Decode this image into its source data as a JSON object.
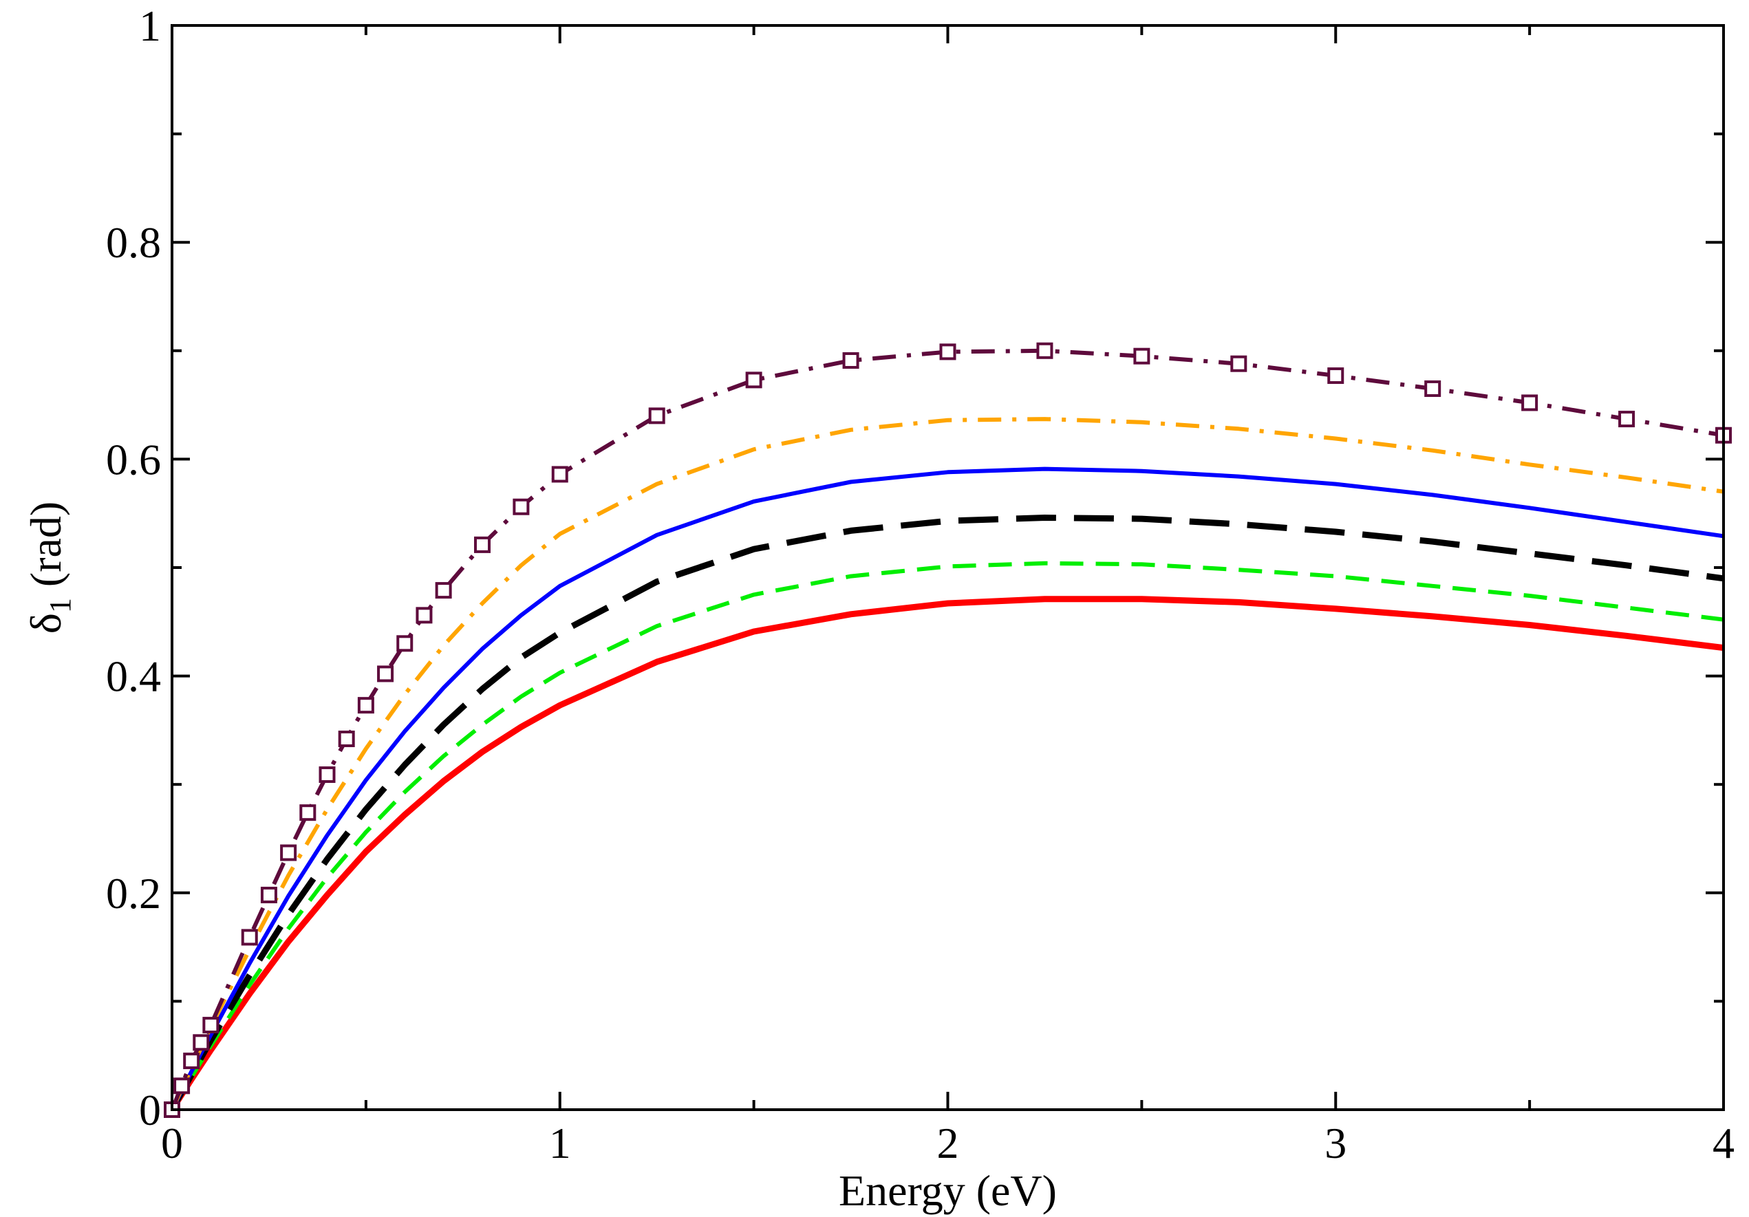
{
  "chart_data": {
    "type": "line",
    "title": "",
    "xlabel": "Energy (eV)",
    "ylabel": {
      "symbol": "δ",
      "subscript": "1",
      "unit": " (rad)"
    },
    "xlim": [
      0,
      4
    ],
    "ylim": [
      0,
      1
    ],
    "grid": false,
    "legend": "none",
    "x_ticks": [
      {
        "value": 0,
        "label": "0"
      },
      {
        "value": 1,
        "label": "1"
      },
      {
        "value": 2,
        "label": "2"
      },
      {
        "value": 3,
        "label": "3"
      },
      {
        "value": 4,
        "label": "4"
      }
    ],
    "y_ticks": [
      {
        "value": 0,
        "label": "0"
      },
      {
        "value": 0.2,
        "label": "0.2"
      },
      {
        "value": 0.4,
        "label": "0.4"
      },
      {
        "value": 0.6,
        "label": "0.6"
      },
      {
        "value": 0.8,
        "label": "0.8"
      },
      {
        "value": 1,
        "label": "1"
      }
    ],
    "x_minor_ticks": [
      0.5,
      1.5,
      2.5,
      3.5
    ],
    "y_minor_ticks": [
      0.1,
      0.3,
      0.5,
      0.7,
      0.9
    ],
    "series": [
      {
        "name": "red-solid",
        "color": "#ff0000",
        "style": "solid",
        "width": "thick",
        "marker": "none",
        "x": [
          0,
          0.05,
          0.1,
          0.2,
          0.3,
          0.4,
          0.5,
          0.6,
          0.7,
          0.8,
          0.9,
          1.0,
          1.25,
          1.5,
          1.75,
          2.0,
          2.25,
          2.5,
          2.75,
          3.0,
          3.25,
          3.5,
          3.75,
          4.0
        ],
        "y": [
          0,
          0.028,
          0.055,
          0.107,
          0.155,
          0.198,
          0.238,
          0.272,
          0.303,
          0.33,
          0.353,
          0.373,
          0.413,
          0.441,
          0.457,
          0.467,
          0.471,
          0.471,
          0.468,
          0.462,
          0.455,
          0.447,
          0.437,
          0.426
        ]
      },
      {
        "name": "green-dashed",
        "color": "#00ee00",
        "style": "dash",
        "width": "medium",
        "marker": "none",
        "x": [
          0,
          0.05,
          0.1,
          0.2,
          0.3,
          0.4,
          0.5,
          0.6,
          0.7,
          0.8,
          0.9,
          1.0,
          1.25,
          1.5,
          1.75,
          2.0,
          2.25,
          2.5,
          2.75,
          3.0,
          3.25,
          3.5,
          3.75,
          4.0
        ],
        "y": [
          0,
          0.03,
          0.059,
          0.115,
          0.167,
          0.214,
          0.256,
          0.293,
          0.326,
          0.355,
          0.381,
          0.403,
          0.446,
          0.475,
          0.492,
          0.501,
          0.504,
          0.503,
          0.498,
          0.492,
          0.483,
          0.474,
          0.463,
          0.452
        ]
      },
      {
        "name": "black-long-dashed",
        "color": "#000000",
        "style": "longdash",
        "width": "thick",
        "marker": "none",
        "x": [
          0,
          0.05,
          0.1,
          0.2,
          0.3,
          0.4,
          0.5,
          0.6,
          0.7,
          0.8,
          0.9,
          1.0,
          1.25,
          1.5,
          1.75,
          2.0,
          2.25,
          2.5,
          2.75,
          3.0,
          3.25,
          3.5,
          3.75,
          4.0
        ],
        "y": [
          0,
          0.032,
          0.064,
          0.124,
          0.18,
          0.231,
          0.277,
          0.318,
          0.355,
          0.388,
          0.417,
          0.44,
          0.487,
          0.517,
          0.534,
          0.543,
          0.546,
          0.545,
          0.54,
          0.533,
          0.524,
          0.513,
          0.502,
          0.49
        ]
      },
      {
        "name": "blue-solid",
        "color": "#0000ff",
        "style": "solid",
        "width": "medium",
        "marker": "none",
        "x": [
          0,
          0.05,
          0.1,
          0.2,
          0.3,
          0.4,
          0.5,
          0.6,
          0.7,
          0.8,
          0.9,
          1.0,
          1.25,
          1.5,
          1.75,
          2.0,
          2.25,
          2.5,
          2.75,
          3.0,
          3.25,
          3.5,
          3.75,
          4.0
        ],
        "y": [
          0,
          0.035,
          0.069,
          0.135,
          0.197,
          0.253,
          0.304,
          0.349,
          0.389,
          0.425,
          0.456,
          0.483,
          0.53,
          0.561,
          0.579,
          0.588,
          0.591,
          0.589,
          0.584,
          0.577,
          0.567,
          0.555,
          0.542,
          0.529
        ]
      },
      {
        "name": "orange-dash-dot",
        "color": "#ffa500",
        "style": "dashdot",
        "width": "medium",
        "marker": "none",
        "x": [
          0,
          0.05,
          0.1,
          0.2,
          0.3,
          0.4,
          0.5,
          0.6,
          0.7,
          0.8,
          0.9,
          1.0,
          1.25,
          1.5,
          1.75,
          2.0,
          2.25,
          2.5,
          2.75,
          3.0,
          3.25,
          3.5,
          3.75,
          4.0
        ],
        "y": [
          0,
          0.038,
          0.076,
          0.148,
          0.216,
          0.277,
          0.333,
          0.383,
          0.428,
          0.467,
          0.502,
          0.531,
          0.577,
          0.609,
          0.627,
          0.636,
          0.637,
          0.634,
          0.628,
          0.619,
          0.608,
          0.595,
          0.583,
          0.57
        ]
      },
      {
        "name": "purple-dash-dot-squares",
        "color": "#5e0a3c",
        "style": "dashdot",
        "width": "medium",
        "marker": "square",
        "x": [
          0,
          0.025,
          0.05,
          0.075,
          0.1,
          0.2,
          0.25,
          0.3,
          0.35,
          0.4,
          0.45,
          0.5,
          0.55,
          0.6,
          0.65,
          0.7,
          0.8,
          0.9,
          1.0,
          1.25,
          1.5,
          1.75,
          2.0,
          2.25,
          2.5,
          2.75,
          3.0,
          3.25,
          3.5,
          3.75,
          4.0
        ],
        "y": [
          0,
          0.022,
          0.045,
          0.062,
          0.078,
          0.159,
          0.198,
          0.237,
          0.274,
          0.309,
          0.342,
          0.373,
          0.402,
          0.43,
          0.456,
          0.479,
          0.521,
          0.556,
          0.586,
          0.64,
          0.673,
          0.691,
          0.699,
          0.7,
          0.695,
          0.688,
          0.677,
          0.665,
          0.652,
          0.637,
          0.622
        ]
      }
    ]
  }
}
